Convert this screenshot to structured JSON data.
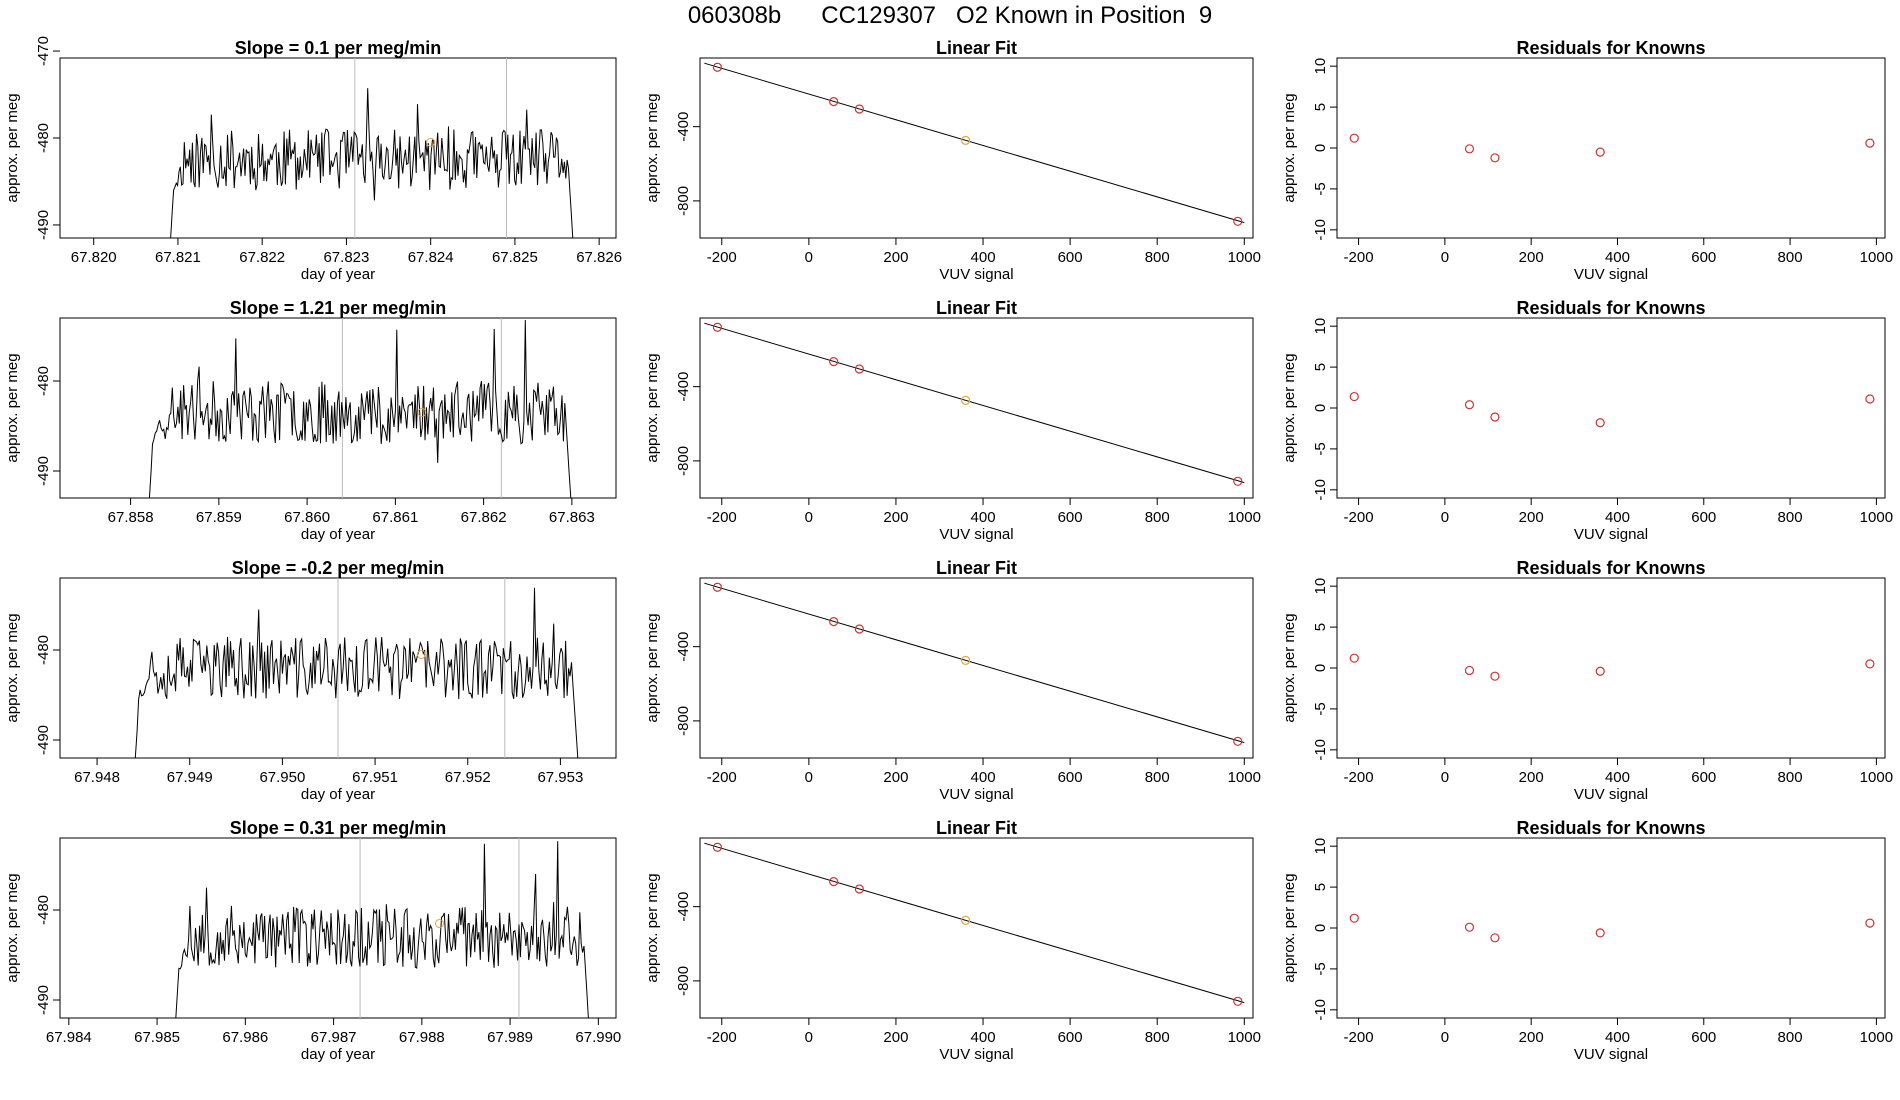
{
  "page_title": "060308b      CC129307   O2 Known in Position  9",
  "colors": {
    "trace": "#000000",
    "marker": "#cc3333",
    "highlight": "#e8a33c",
    "vline": "#bbbbbb",
    "axis": "#000000"
  },
  "chart_data": [
    {
      "type": "line",
      "row": 0,
      "title": "Slope =  0.1  per meg/min",
      "xlabel": "day of year",
      "ylabel": "approx. per meg",
      "xlim": [
        67.8196,
        67.8262
      ],
      "ylim": [
        -491.5,
        -470.8
      ],
      "xticks": [
        67.82,
        67.821,
        67.822,
        67.823,
        67.824,
        67.825,
        67.826
      ],
      "xtick_labels": [
        "67.820",
        "67.821",
        "67.822",
        "67.823",
        "67.824",
        "67.825",
        "67.826"
      ],
      "yticks": [
        -490,
        -480,
        -470
      ],
      "ytick_labels": [
        "-490",
        "-480",
        "-470"
      ],
      "vlines": [
        67.8231,
        67.8249
      ],
      "highlight_point": {
        "x": 67.824,
        "y": -480.5
      },
      "trace_start": 67.8209,
      "trace_end": 67.8257,
      "base": -482.5,
      "seed": 11
    },
    {
      "type": "scatter",
      "row": 0,
      "title": "Linear Fit",
      "xlabel": "VUV signal",
      "ylabel": "approx. per meg",
      "xlim": [
        -250,
        1020
      ],
      "ylim": [
        -1000,
        -30
      ],
      "xticks": [
        -200,
        0,
        200,
        400,
        600,
        800,
        1000
      ],
      "xtick_labels": [
        "-200",
        "0",
        "200",
        "400",
        "600",
        "800",
        "1000"
      ],
      "yticks": [
        -800,
        -400
      ],
      "ytick_labels": [
        "-800",
        "-400"
      ],
      "points": [
        [
          -210,
          -80
        ],
        [
          57,
          -265
        ],
        [
          116,
          -305
        ],
        [
          360,
          -474
        ],
        [
          985,
          -910
        ]
      ],
      "highlight_index": 3,
      "fit_line": [
        [
          -240,
          -58
        ],
        [
          1000,
          -917
        ]
      ]
    },
    {
      "type": "scatter",
      "row": 0,
      "title": "Residuals for Knowns",
      "xlabel": "VUV signal",
      "ylabel": "approx. per meg",
      "xlim": [
        -250,
        1020
      ],
      "ylim": [
        -11,
        11
      ],
      "xticks": [
        -200,
        0,
        200,
        400,
        600,
        800,
        1000
      ],
      "xtick_labels": [
        "-200",
        "0",
        "200",
        "400",
        "600",
        "800",
        "1000"
      ],
      "yticks": [
        -10,
        -5,
        0,
        5,
        10
      ],
      "ytick_labels": [
        "-10",
        "-5",
        "0",
        "5",
        "10"
      ],
      "points": [
        [
          -210,
          1.2
        ],
        [
          57,
          -0.1
        ],
        [
          116,
          -1.2
        ],
        [
          360,
          -0.5
        ],
        [
          985,
          0.6
        ]
      ]
    },
    {
      "type": "line",
      "row": 1,
      "title": "Slope =  1.21  per meg/min",
      "xlabel": "day of year",
      "ylabel": "approx. per meg",
      "xlim": [
        67.8572,
        67.8635
      ],
      "ylim": [
        -493,
        -473
      ],
      "xticks": [
        67.858,
        67.859,
        67.86,
        67.861,
        67.862,
        67.863
      ],
      "xtick_labels": [
        "67.858",
        "67.859",
        "67.860",
        "67.861",
        "67.862",
        "67.863"
      ],
      "yticks": [
        -490,
        -480
      ],
      "ytick_labels": [
        "-490",
        "-480"
      ],
      "vlines": [
        67.8604,
        67.8622
      ],
      "highlight_point": {
        "x": 67.8613,
        "y": -483.5
      },
      "trace_start": 67.8582,
      "trace_end": 67.863,
      "base": -483.5,
      "seed": 23
    },
    {
      "type": "scatter",
      "row": 1,
      "title": "Linear Fit",
      "xlabel": "VUV signal",
      "ylabel": "approx. per meg",
      "xlim": [
        -250,
        1020
      ],
      "ylim": [
        -1000,
        -30
      ],
      "xticks": [
        -200,
        0,
        200,
        400,
        600,
        800,
        1000
      ],
      "xtick_labels": [
        "-200",
        "0",
        "200",
        "400",
        "600",
        "800",
        "1000"
      ],
      "yticks": [
        -800,
        -400
      ],
      "ytick_labels": [
        "-800",
        "-400"
      ],
      "points": [
        [
          -210,
          -80
        ],
        [
          57,
          -265
        ],
        [
          116,
          -305
        ],
        [
          360,
          -474
        ],
        [
          985,
          -910
        ]
      ],
      "highlight_index": 3,
      "fit_line": [
        [
          -240,
          -58
        ],
        [
          1000,
          -917
        ]
      ]
    },
    {
      "type": "scatter",
      "row": 1,
      "title": "Residuals for Knowns",
      "xlabel": "VUV signal",
      "ylabel": "approx. per meg",
      "xlim": [
        -250,
        1020
      ],
      "ylim": [
        -11,
        11
      ],
      "xticks": [
        -200,
        0,
        200,
        400,
        600,
        800,
        1000
      ],
      "xtick_labels": [
        "-200",
        "0",
        "200",
        "400",
        "600",
        "800",
        "1000"
      ],
      "yticks": [
        -10,
        -5,
        0,
        5,
        10
      ],
      "ytick_labels": [
        "-10",
        "-5",
        "0",
        "5",
        "10"
      ],
      "points": [
        [
          -210,
          1.4
        ],
        [
          57,
          0.4
        ],
        [
          116,
          -1.1
        ],
        [
          360,
          -1.8
        ],
        [
          985,
          1.1
        ]
      ]
    },
    {
      "type": "line",
      "row": 2,
      "title": "Slope =  -0.2  per meg/min",
      "xlabel": "day of year",
      "ylabel": "approx. per meg",
      "xlim": [
        67.9476,
        67.9536
      ],
      "ylim": [
        -492,
        -472
      ],
      "xticks": [
        67.948,
        67.949,
        67.95,
        67.951,
        67.952,
        67.953
      ],
      "xtick_labels": [
        "67.948",
        "67.949",
        "67.950",
        "67.951",
        "67.952",
        "67.953"
      ],
      "yticks": [
        -490,
        -480
      ],
      "ytick_labels": [
        "-490",
        "-480"
      ],
      "vlines": [
        67.9506,
        67.9524
      ],
      "highlight_point": {
        "x": 67.9515,
        "y": -480.5
      },
      "trace_start": 67.9484,
      "trace_end": 67.9532,
      "base": -482,
      "seed": 37
    },
    {
      "type": "scatter",
      "row": 2,
      "title": "Linear Fit",
      "xlabel": "VUV signal",
      "ylabel": "approx. per meg",
      "xlim": [
        -250,
        1020
      ],
      "ylim": [
        -1000,
        -30
      ],
      "xticks": [
        -200,
        0,
        200,
        400,
        600,
        800,
        1000
      ],
      "xtick_labels": [
        "-200",
        "0",
        "200",
        "400",
        "600",
        "800",
        "1000"
      ],
      "yticks": [
        -800,
        -400
      ],
      "ytick_labels": [
        "-800",
        "-400"
      ],
      "points": [
        [
          -210,
          -80
        ],
        [
          57,
          -265
        ],
        [
          116,
          -305
        ],
        [
          360,
          -474
        ],
        [
          985,
          -910
        ]
      ],
      "highlight_index": 3,
      "fit_line": [
        [
          -240,
          -58
        ],
        [
          1000,
          -917
        ]
      ]
    },
    {
      "type": "scatter",
      "row": 2,
      "title": "Residuals for Knowns",
      "xlabel": "VUV signal",
      "ylabel": "approx. per meg",
      "xlim": [
        -250,
        1020
      ],
      "ylim": [
        -11,
        11
      ],
      "xticks": [
        -200,
        0,
        200,
        400,
        600,
        800,
        1000
      ],
      "xtick_labels": [
        "-200",
        "0",
        "200",
        "400",
        "600",
        "800",
        "1000"
      ],
      "yticks": [
        -10,
        -5,
        0,
        5,
        10
      ],
      "ytick_labels": [
        "-10",
        "-5",
        "0",
        "5",
        "10"
      ],
      "points": [
        [
          -210,
          1.2
        ],
        [
          57,
          -0.3
        ],
        [
          116,
          -1.0
        ],
        [
          360,
          -0.4
        ],
        [
          985,
          0.5
        ]
      ]
    },
    {
      "type": "line",
      "row": 3,
      "title": "Slope =  0.31  per meg/min",
      "xlabel": "day of year",
      "ylabel": "approx. per meg",
      "xlim": [
        67.9839,
        67.9902
      ],
      "ylim": [
        -492,
        -472
      ],
      "xticks": [
        67.984,
        67.985,
        67.986,
        67.987,
        67.988,
        67.989,
        67.99
      ],
      "xtick_labels": [
        "67.984",
        "67.985",
        "67.986",
        "67.987",
        "67.988",
        "67.989",
        "67.990"
      ],
      "yticks": [
        -490,
        -480
      ],
      "ytick_labels": [
        "-490",
        "-480"
      ],
      "vlines": [
        67.9873,
        67.9891
      ],
      "highlight_point": {
        "x": 67.9882,
        "y": -481.5
      },
      "trace_start": 67.9852,
      "trace_end": 67.9899,
      "base": -483,
      "seed": 53
    },
    {
      "type": "scatter",
      "row": 3,
      "title": "Linear Fit",
      "xlabel": "VUV signal",
      "ylabel": "approx. per meg",
      "xlim": [
        -250,
        1020
      ],
      "ylim": [
        -1000,
        -30
      ],
      "xticks": [
        -200,
        0,
        200,
        400,
        600,
        800,
        1000
      ],
      "xtick_labels": [
        "-200",
        "0",
        "200",
        "400",
        "600",
        "800",
        "1000"
      ],
      "yticks": [
        -800,
        -400
      ],
      "ytick_labels": [
        "-800",
        "-400"
      ],
      "points": [
        [
          -210,
          -80
        ],
        [
          57,
          -265
        ],
        [
          116,
          -305
        ],
        [
          360,
          -474
        ],
        [
          985,
          -910
        ]
      ],
      "highlight_index": 3,
      "fit_line": [
        [
          -240,
          -58
        ],
        [
          1000,
          -917
        ]
      ]
    },
    {
      "type": "scatter",
      "row": 3,
      "title": "Residuals for Knowns",
      "xlabel": "VUV signal",
      "ylabel": "approx. per meg",
      "xlim": [
        -250,
        1020
      ],
      "ylim": [
        -11,
        11
      ],
      "xticks": [
        -200,
        0,
        200,
        400,
        600,
        800,
        1000
      ],
      "xtick_labels": [
        "-200",
        "0",
        "200",
        "400",
        "600",
        "800",
        "1000"
      ],
      "yticks": [
        -10,
        -5,
        0,
        5,
        10
      ],
      "ytick_labels": [
        "-10",
        "-5",
        "0",
        "5",
        "10"
      ],
      "points": [
        [
          -210,
          1.2
        ],
        [
          57,
          0.1
        ],
        [
          116,
          -1.2
        ],
        [
          360,
          -0.6
        ],
        [
          985,
          0.6
        ]
      ]
    }
  ]
}
